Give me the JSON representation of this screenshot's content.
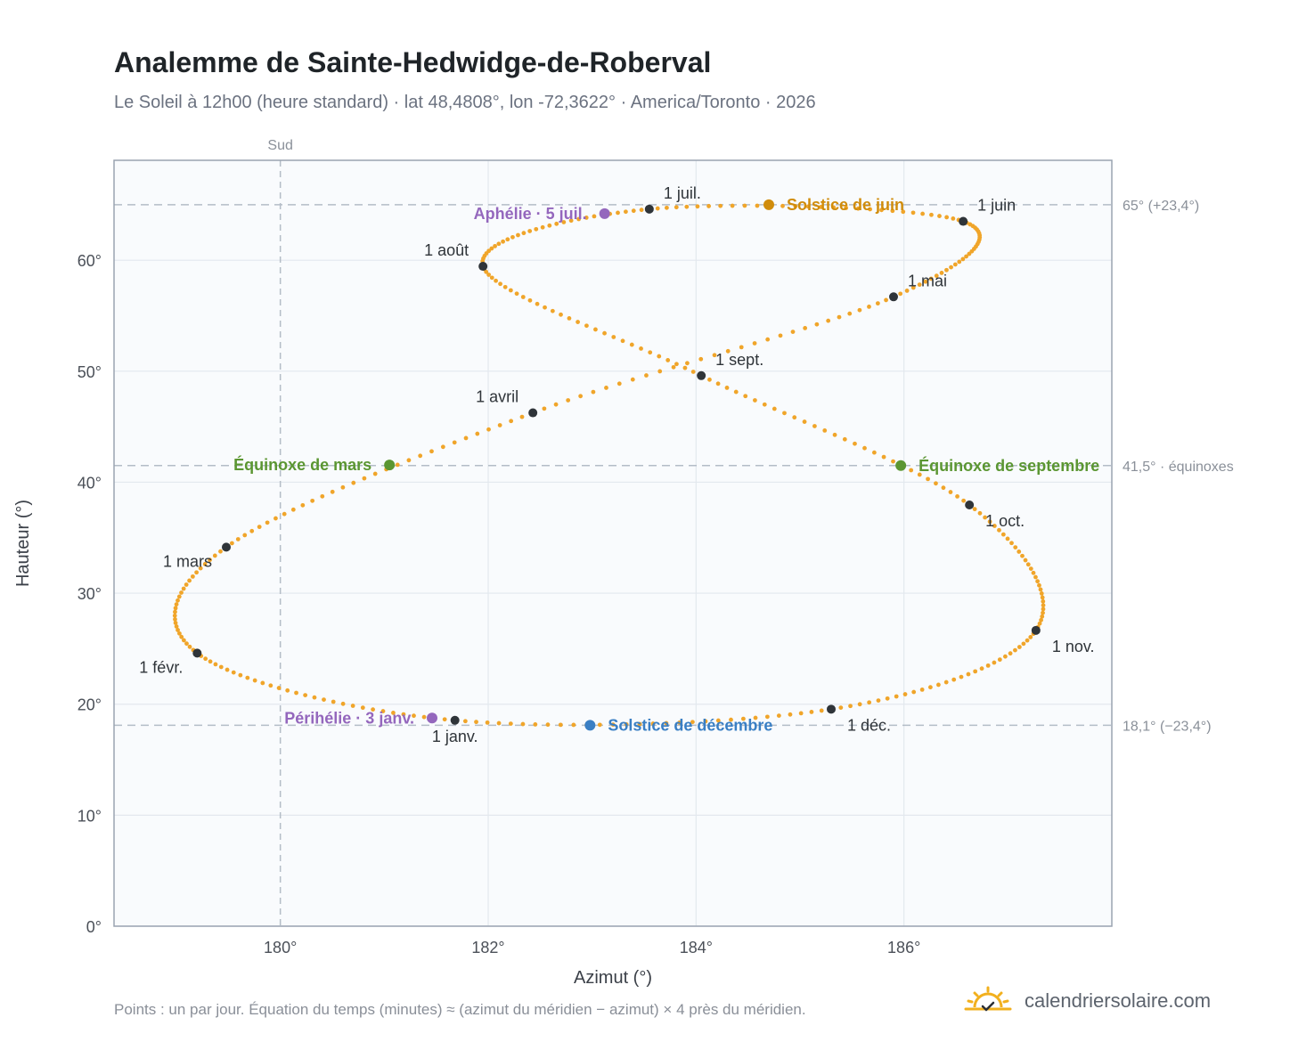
{
  "header": {
    "title": "Analemme de Sainte-Hedwidge-de-Roberval",
    "subtitle": "Le Soleil à 12h00 (heure standard) · lat 48,4808°, lon -72,3622° · America/Toronto · 2026"
  },
  "footer": {
    "note": "Points : un par jour. Équation du temps (minutes) ≈ (azimut du méridien − azimut) × 4 près du méridien.",
    "brand": "calendriersolaire.com"
  },
  "chart_data": {
    "type": "scatter",
    "xlabel": "Azimut (°)",
    "ylabel": "Hauteur (°)",
    "xlim": [
      178.4,
      188.0
    ],
    "ylim": [
      0,
      69
    ],
    "x_ticks": [
      180,
      182,
      184,
      186
    ],
    "x_tick_labels": [
      "180°",
      "182°",
      "184°",
      "186°"
    ],
    "y_ticks": [
      0,
      10,
      20,
      30,
      40,
      50,
      60
    ],
    "y_tick_labels": [
      "0°",
      "10°",
      "20°",
      "30°",
      "40°",
      "50°",
      "60°"
    ],
    "grid": true,
    "meridian": {
      "x": 180,
      "label": "Sud"
    },
    "reference_lines": [
      {
        "y": 65.0,
        "label": "65° (+23,4°)"
      },
      {
        "y": 41.5,
        "label": "41,5° · équinoxes"
      },
      {
        "y": 18.1,
        "label": "18,1° (−23,4°)"
      }
    ],
    "analemma": {
      "points_per_day": 1,
      "color": "#f0a52a",
      "trace": [
        {
          "day": 1,
          "az": 181.68,
          "alt": 18.55
        },
        {
          "day": 32,
          "az": 179.2,
          "alt": 24.6
        },
        {
          "day": 60,
          "az": 179.48,
          "alt": 34.15
        },
        {
          "day": 91,
          "az": 182.43,
          "alt": 46.25
        },
        {
          "day": 121,
          "az": 185.9,
          "alt": 56.7
        },
        {
          "day": 152,
          "az": 186.57,
          "alt": 63.5
        },
        {
          "day": 182,
          "az": 183.55,
          "alt": 64.6
        },
        {
          "day": 213,
          "az": 181.95,
          "alt": 59.45
        },
        {
          "day": 244,
          "az": 184.05,
          "alt": 49.6
        },
        {
          "day": 274,
          "az": 186.63,
          "alt": 37.95
        },
        {
          "day": 305,
          "az": 187.27,
          "alt": 26.65
        },
        {
          "day": 335,
          "az": 185.3,
          "alt": 19.55
        },
        {
          "day": 366,
          "az": 181.68,
          "alt": 18.55
        }
      ]
    },
    "months": [
      {
        "label": "1 janv.",
        "az": 181.68,
        "alt": 18.55,
        "pos": "below"
      },
      {
        "label": "1 févr.",
        "az": 179.2,
        "alt": 24.6,
        "pos": "below-left"
      },
      {
        "label": "1 mars",
        "az": 179.48,
        "alt": 34.15,
        "pos": "below-left"
      },
      {
        "label": "1 avril",
        "az": 182.43,
        "alt": 46.25,
        "pos": "above-left"
      },
      {
        "label": "1 mai",
        "az": 185.9,
        "alt": 56.7,
        "pos": "above-right"
      },
      {
        "label": "1 juin",
        "az": 186.57,
        "alt": 63.5,
        "pos": "above-right"
      },
      {
        "label": "1 juil.",
        "az": 183.55,
        "alt": 64.6,
        "pos": "above-right"
      },
      {
        "label": "1 août",
        "az": 181.95,
        "alt": 59.45,
        "pos": "above-left"
      },
      {
        "label": "1 sept.",
        "az": 184.05,
        "alt": 49.6,
        "pos": "above-right"
      },
      {
        "label": "1 oct.",
        "az": 186.63,
        "alt": 37.95,
        "pos": "below-right"
      },
      {
        "label": "1 nov.",
        "az": 187.27,
        "alt": 26.65,
        "pos": "below-right"
      },
      {
        "label": "1 déc.",
        "az": 185.3,
        "alt": 19.55,
        "pos": "below-right"
      }
    ],
    "events": [
      {
        "label": "Solstice de juin",
        "az": 184.7,
        "alt": 65.0,
        "color": "#d08c0b",
        "pos": "right"
      },
      {
        "label": "Aphélie · 5 juil.",
        "az": 183.12,
        "alt": 64.2,
        "color": "#9467bd",
        "pos": "left"
      },
      {
        "label": "Équinoxe de mars",
        "az": 181.05,
        "alt": 41.55,
        "color": "#5b9632",
        "pos": "left"
      },
      {
        "label": "Équinoxe de septembre",
        "az": 185.97,
        "alt": 41.5,
        "color": "#5b9632",
        "pos": "right"
      },
      {
        "label": "Périhélie · 3 janv.",
        "az": 181.46,
        "alt": 18.75,
        "color": "#9467bd",
        "pos": "left"
      },
      {
        "label": "Solstice de décembre",
        "az": 182.98,
        "alt": 18.1,
        "color": "#3a7fc4",
        "pos": "right"
      }
    ]
  }
}
